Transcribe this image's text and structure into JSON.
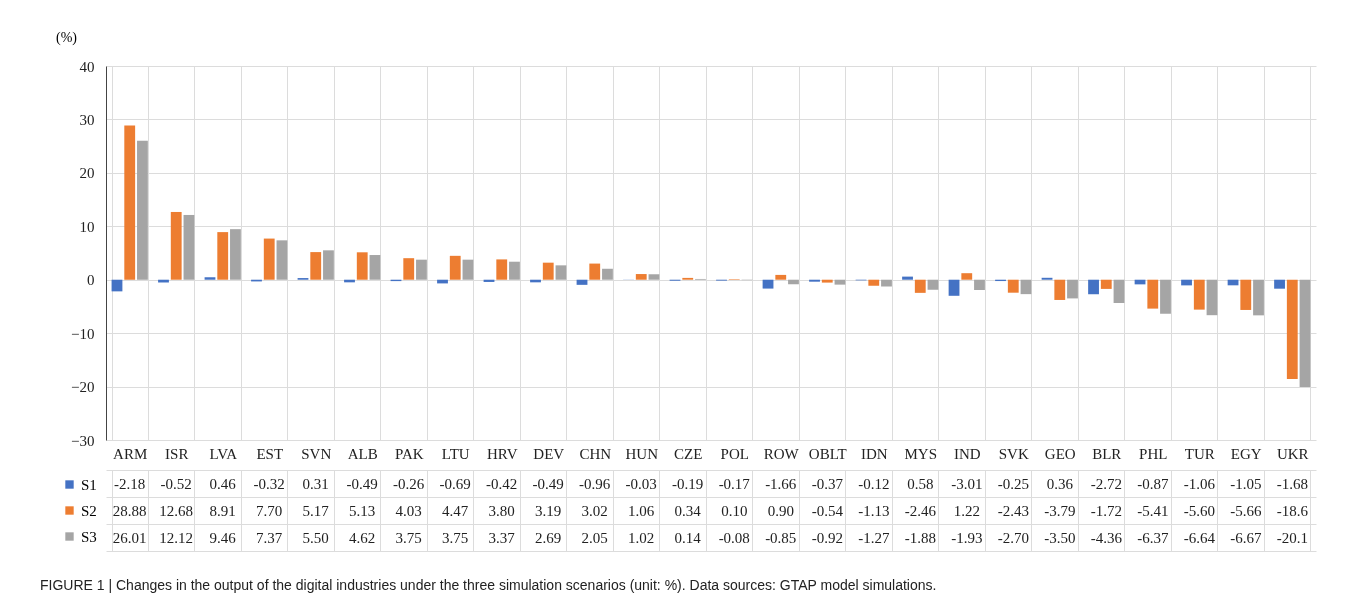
{
  "chart_data": {
    "type": "bar",
    "title": "FIGURE 1 | Changes in the output of the digital industries under the three simulation scenarios (unit: %). Data sources: GTAP model simulations.",
    "ylabel": "(%)",
    "categories": [
      "ARM",
      "ISR",
      "LVA",
      "EST",
      "SVN",
      "ALB",
      "PAK",
      "LTU",
      "HRV",
      "DEV",
      "CHN",
      "HUN",
      "CZE",
      "POL",
      "ROW",
      "OBLT",
      "IDN",
      "MYS",
      "IND",
      "SVK",
      "GEO",
      "BLR",
      "PHL",
      "TUR",
      "EGY",
      "UKR"
    ],
    "series": [
      {
        "name": "S1",
        "color": "#4472c4",
        "values": [
          -2.18,
          -0.52,
          0.46,
          -0.32,
          0.31,
          -0.49,
          -0.26,
          -0.69,
          -0.42,
          -0.49,
          -0.96,
          -0.03,
          -0.19,
          -0.17,
          -1.66,
          -0.37,
          -0.12,
          0.58,
          -3.01,
          -0.25,
          0.36,
          -2.72,
          -0.87,
          -1.06,
          -1.05,
          -1.68
        ],
        "value_labels": [
          "-2.18",
          "-0.52",
          "0.46",
          "-0.32",
          "0.31",
          "-0.49",
          "-0.26",
          "-0.69",
          "-0.42",
          "-0.49",
          "-0.96",
          "-0.03",
          "-0.19",
          "-0.17",
          "-1.66",
          "-0.37",
          "-0.12",
          "0.58",
          "-3.01",
          "-0.25",
          "0.36",
          "-2.72",
          "-0.87",
          "-1.06",
          "-1.05",
          "-1.68"
        ]
      },
      {
        "name": "S2",
        "color": "#ed7d31",
        "values": [
          28.88,
          12.68,
          8.91,
          7.7,
          5.17,
          5.13,
          4.03,
          4.47,
          3.8,
          3.19,
          3.02,
          1.06,
          0.34,
          0.1,
          0.9,
          -0.54,
          -1.13,
          -2.46,
          1.22,
          -2.43,
          -3.79,
          -1.72,
          -5.41,
          -5.6,
          -5.66,
          -18.6
        ],
        "value_labels": [
          "28.88",
          "12.68",
          "8.91",
          "7.70",
          "5.17",
          "5.13",
          "4.03",
          "4.47",
          "3.80",
          "3.19",
          "3.02",
          "1.06",
          "0.34",
          "0.10",
          "0.90",
          "-0.54",
          "-1.13",
          "-2.46",
          "1.22",
          "-2.43",
          "-3.79",
          "-1.72",
          "-5.41",
          "-5.60",
          "-5.66",
          "-18.6"
        ]
      },
      {
        "name": "S3",
        "color": "#a5a5a5",
        "values": [
          26.01,
          12.12,
          9.46,
          7.37,
          5.5,
          4.62,
          3.75,
          3.75,
          3.37,
          2.69,
          2.05,
          1.02,
          0.14,
          -0.08,
          -0.85,
          -0.92,
          -1.27,
          -1.88,
          -1.93,
          -2.7,
          -3.5,
          -4.36,
          -6.37,
          -6.64,
          -6.67,
          -20.1
        ],
        "value_labels": [
          "26.01",
          "12.12",
          "9.46",
          "7.37",
          "5.50",
          "4.62",
          "3.75",
          "3.75",
          "3.37",
          "2.69",
          "2.05",
          "1.02",
          "0.14",
          "-0.08",
          "-0.85",
          "-0.92",
          "-1.27",
          "-1.88",
          "-1.93",
          "-2.70",
          "-3.50",
          "-4.36",
          "-6.37",
          "-6.64",
          "-6.67",
          "-20.1"
        ]
      }
    ],
    "ylim": [
      -30,
      40
    ],
    "yticks": [
      -30,
      -20,
      -10,
      0,
      10,
      20,
      30,
      40
    ],
    "grid": true,
    "legend": "bottom"
  }
}
